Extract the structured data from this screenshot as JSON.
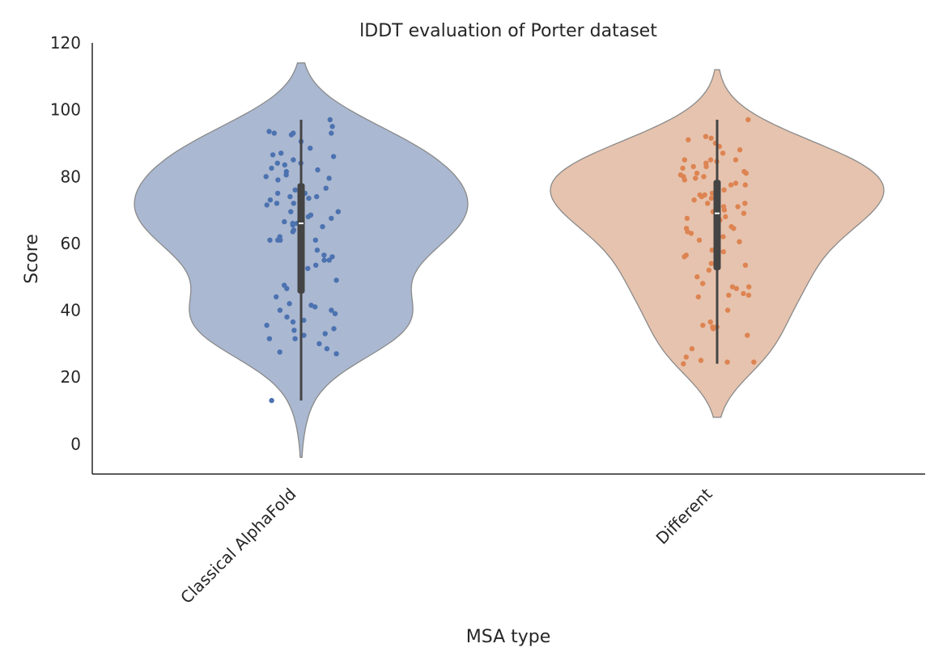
{
  "chart_data": {
    "type": "violin",
    "title": "lDDT evaluation of Porter dataset",
    "xlabel": "MSA type",
    "ylabel": "Score",
    "ylim": [
      -9,
      120
    ],
    "yticks": [
      0,
      20,
      40,
      60,
      80,
      100,
      120
    ],
    "categories": [
      "Classical AlphaFold",
      "Different"
    ],
    "colors": {
      "Classical AlphaFold": {
        "violin": "#aab8d1",
        "points": "#4c72b0"
      },
      "Different": {
        "violin": "#e6c3ae",
        "points": "#dd8452"
      }
    },
    "grid": false,
    "legend": "none",
    "series": [
      {
        "category": "Classical AlphaFold",
        "box": {
          "min": 13,
          "q1": 45,
          "median": 66,
          "q3": 78,
          "max": 97
        },
        "violin_range": [
          -4,
          114
        ],
        "points": [
          97,
          95,
          93.5,
          93,
          93,
          93,
          92.5,
          90.5,
          88.5,
          87,
          86.5,
          86,
          85,
          84,
          84,
          83.5,
          82.5,
          82,
          81.5,
          80.5,
          80,
          79.5,
          79,
          76.5,
          76,
          75,
          75,
          74,
          74,
          73.5,
          73,
          72,
          72,
          71.5,
          69.5,
          69.5,
          68.5,
          68,
          67.5,
          66.5,
          66,
          66,
          65.5,
          65,
          64,
          63.5,
          62,
          61,
          61,
          61,
          61,
          58,
          56.5,
          56,
          55,
          55,
          53.5,
          52.5,
          52,
          49,
          47.5,
          46.5,
          44,
          42,
          41.5,
          41,
          40,
          40,
          39,
          38,
          37,
          36.5,
          35.5,
          34.5,
          34,
          33,
          32.5,
          31.5,
          31.5,
          30,
          28.5,
          27.5,
          27,
          13
        ]
      },
      {
        "category": "Different",
        "box": {
          "min": 24,
          "q1": 52,
          "median": 69,
          "q3": 79,
          "max": 97
        },
        "violin_range": [
          8,
          112
        ],
        "points": [
          97,
          92,
          91.5,
          91,
          90,
          89,
          88,
          87,
          85,
          85,
          85,
          84.5,
          84,
          83,
          83,
          82.5,
          81.5,
          81,
          81,
          80.5,
          80,
          80,
          79.5,
          79,
          78,
          77.5,
          77.5,
          76,
          75,
          74.5,
          74.5,
          74,
          73.5,
          73,
          72,
          72,
          71,
          71,
          70,
          69.5,
          69,
          68.5,
          68,
          67.5,
          67,
          65,
          64.5,
          64.5,
          63.5,
          63,
          62,
          61,
          60.5,
          58,
          57.5,
          56.5,
          56,
          54,
          54,
          53.5,
          52,
          50,
          48,
          47,
          47,
          46.5,
          45,
          44.5,
          44.5,
          44,
          40,
          36.5,
          35.5,
          35,
          35,
          34.5,
          32.5,
          28.5,
          26,
          25,
          24.5,
          24.5,
          24
        ]
      }
    ]
  }
}
